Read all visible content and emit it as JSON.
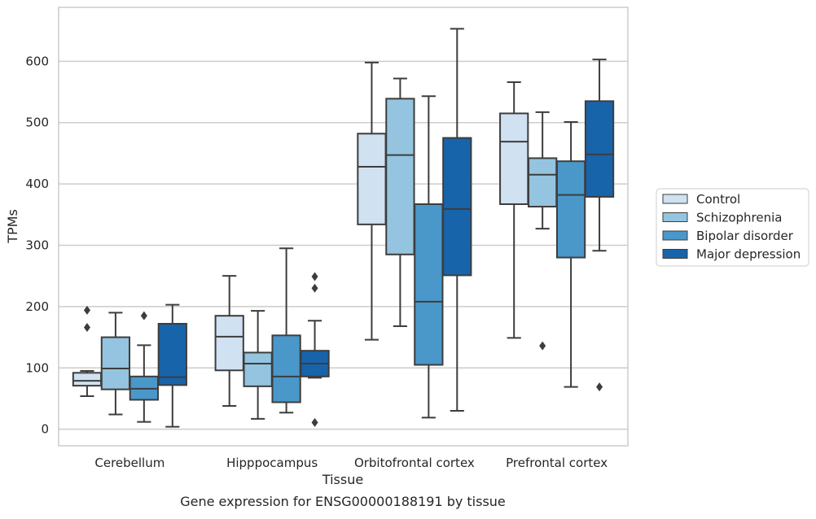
{
  "chart_data": {
    "type": "box",
    "title": "Gene expression for ENSG00000188191 by tissue",
    "xlabel": "Tissue",
    "ylabel": "TPMs",
    "ylim": [
      -27,
      688
    ],
    "yticks": [
      0,
      100,
      200,
      300,
      400,
      500,
      600
    ],
    "grid": "horizontal",
    "legend_position": "right",
    "categories": [
      "Cerebellum",
      "Hipppocampus",
      "Orbitofrontal cortex",
      "Prefrontal cortex"
    ],
    "series": [
      {
        "name": "Control",
        "color": "#d0e1f2",
        "boxes": [
          {
            "whisker_low": 54,
            "q1": 71,
            "median": 79,
            "q3": 92,
            "whisker_high": 95,
            "outliers": [
              166,
              194
            ]
          },
          {
            "whisker_low": 38,
            "q1": 96,
            "median": 151,
            "q3": 185,
            "whisker_high": 250,
            "outliers": []
          },
          {
            "whisker_low": 146,
            "q1": 334,
            "median": 428,
            "q3": 482,
            "whisker_high": 598,
            "outliers": []
          },
          {
            "whisker_low": 149,
            "q1": 367,
            "median": 469,
            "q3": 515,
            "whisker_high": 566,
            "outliers": []
          }
        ]
      },
      {
        "name": "Schizophrenia",
        "color": "#94c4df",
        "boxes": [
          {
            "whisker_low": 24,
            "q1": 65,
            "median": 99,
            "q3": 150,
            "whisker_high": 190,
            "outliers": []
          },
          {
            "whisker_low": 17,
            "q1": 70,
            "median": 107,
            "q3": 125,
            "whisker_high": 193,
            "outliers": []
          },
          {
            "whisker_low": 168,
            "q1": 285,
            "median": 447,
            "q3": 539,
            "whisker_high": 572,
            "outliers": []
          },
          {
            "whisker_low": 327,
            "q1": 363,
            "median": 415,
            "q3": 442,
            "whisker_high": 517,
            "outliers": [
              136
            ]
          }
        ]
      },
      {
        "name": "Bipolar disorder",
        "color": "#4a98c9",
        "boxes": [
          {
            "whisker_low": 12,
            "q1": 48,
            "median": 66,
            "q3": 86,
            "whisker_high": 137,
            "outliers": [
              185
            ]
          },
          {
            "whisker_low": 27,
            "q1": 44,
            "median": 86,
            "q3": 153,
            "whisker_high": 295,
            "outliers": []
          },
          {
            "whisker_low": 19,
            "q1": 105,
            "median": 208,
            "q3": 367,
            "whisker_high": 543,
            "outliers": []
          },
          {
            "whisker_low": 69,
            "q1": 280,
            "median": 382,
            "q3": 437,
            "whisker_high": 501,
            "outliers": []
          }
        ]
      },
      {
        "name": "Major depression",
        "color": "#1764ab",
        "boxes": [
          {
            "whisker_low": 4,
            "q1": 72,
            "median": 85,
            "q3": 172,
            "whisker_high": 203,
            "outliers": []
          },
          {
            "whisker_low": 84,
            "q1": 86,
            "median": 107,
            "q3": 128,
            "whisker_high": 177,
            "outliers": [
              11,
              230,
              249
            ]
          },
          {
            "whisker_low": 30,
            "q1": 251,
            "median": 359,
            "q3": 475,
            "whisker_high": 653,
            "outliers": []
          },
          {
            "whisker_low": 291,
            "q1": 379,
            "median": 448,
            "q3": 535,
            "whisker_high": 603,
            "outliers": [
              69
            ]
          }
        ]
      }
    ]
  }
}
